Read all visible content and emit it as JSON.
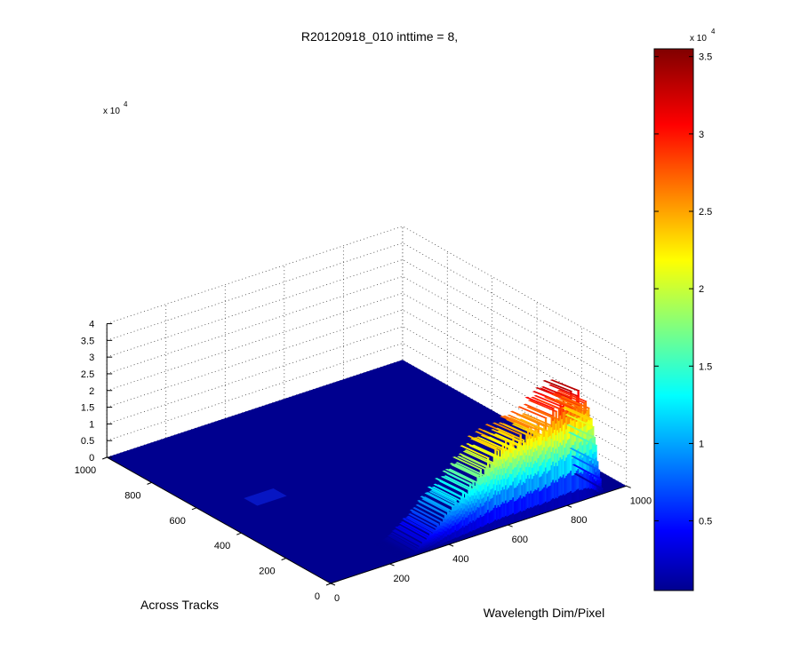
{
  "chart_data": {
    "type": "surface",
    "title": "R20120918_010 inttime = 8,",
    "xlabel": "Wavelength Dim/Pixel",
    "ylabel": "Across Tracks",
    "z_exponent_label": "x 10",
    "z_exponent_power": "4",
    "x_range": [
      0,
      1000
    ],
    "y_range": [
      0,
      1000
    ],
    "z_range": [
      0,
      40000
    ],
    "x_ticks": [
      "0",
      "200",
      "400",
      "600",
      "800",
      "1000"
    ],
    "y_ticks": [
      "0",
      "200",
      "400",
      "600",
      "800",
      "1000"
    ],
    "z_ticks": [
      "0",
      "0.5",
      "1",
      "1.5",
      "2",
      "2.5",
      "3",
      "3.5",
      "4"
    ],
    "grid": true,
    "colormap": "jet",
    "colorbar": {
      "range": [
        500,
        35500
      ],
      "exponent_label": "x 10",
      "exponent_power": "4",
      "ticks": [
        "0.5",
        "1",
        "1.5",
        "2",
        "2.5",
        "3",
        "3.5"
      ]
    },
    "signal_region": {
      "across_track_rows": [
        0,
        120
      ],
      "peak_wavelength_pixel": [
        780,
        840
      ],
      "peak_value": 35000
    },
    "profile": {
      "wavelength_pixel": [
        0,
        40,
        80,
        120,
        160,
        200,
        240,
        280,
        320,
        360,
        400,
        440,
        480,
        520,
        560,
        600,
        640,
        680,
        720,
        760,
        800,
        840,
        880,
        920,
        960,
        1000
      ],
      "peak_counts": [
        0,
        0,
        0,
        0,
        0,
        0,
        0,
        1000,
        4000,
        7000,
        11000,
        14000,
        17000,
        21000,
        25000,
        27000,
        26000,
        29000,
        28000,
        32000,
        35000,
        34000,
        28000,
        0,
        0,
        0
      ]
    }
  }
}
